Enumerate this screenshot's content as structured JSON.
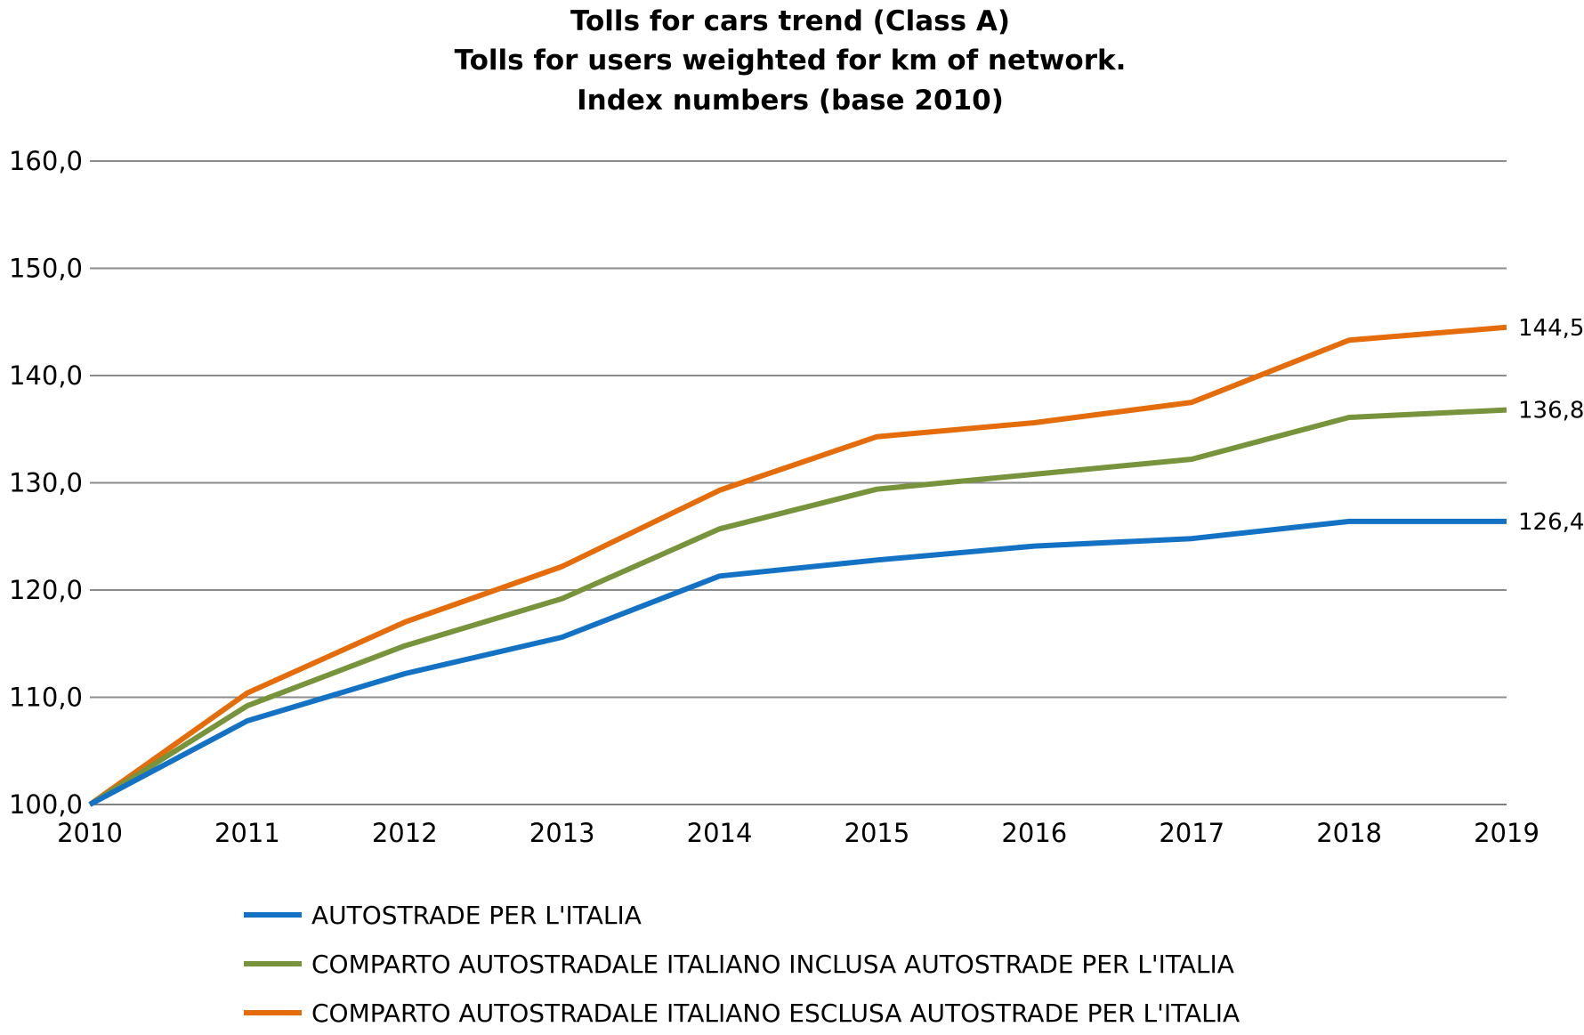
{
  "chart_data": {
    "type": "line",
    "title": [
      "Tolls for cars trend (Class A)",
      "Tolls for users weighted for km of network.",
      "Index numbers (base 2010)"
    ],
    "xlabel": "",
    "ylabel": "",
    "x": [
      "2010",
      "2011",
      "2012",
      "2013",
      "2014",
      "2015",
      "2016",
      "2017",
      "2018",
      "2019"
    ],
    "ylim": [
      100,
      160
    ],
    "yticks": [
      "100,0",
      "110,0",
      "120,0",
      "130,0",
      "140,0",
      "150,0",
      "160,0"
    ],
    "ytick_values": [
      100,
      110,
      120,
      130,
      140,
      150,
      160
    ],
    "grid": "horizontal",
    "legend_position": "bottom",
    "series": [
      {
        "name": "AUTOSTRADE PER L'ITALIA",
        "color": "#1472c4",
        "values": [
          100.0,
          107.8,
          112.2,
          115.6,
          121.3,
          122.8,
          124.1,
          124.8,
          126.4,
          126.4
        ],
        "end_label": "126,4"
      },
      {
        "name": "COMPARTO AUTOSTRADALE ITALIANO INCLUSA AUTOSTRADE PER L'ITALIA",
        "color": "#77933c",
        "values": [
          100.0,
          109.2,
          114.8,
          119.2,
          125.7,
          129.4,
          130.8,
          132.2,
          136.1,
          136.8
        ],
        "end_label": "136,8"
      },
      {
        "name": "COMPARTO AUTOSTRADALE ITALIANO ESCLUSA AUTOSTRADE PER L'ITALIA",
        "color": "#e46c0a",
        "values": [
          100.0,
          110.4,
          117.0,
          122.2,
          129.3,
          134.3,
          135.6,
          137.5,
          143.3,
          144.5
        ],
        "end_label": "144,5"
      }
    ]
  }
}
